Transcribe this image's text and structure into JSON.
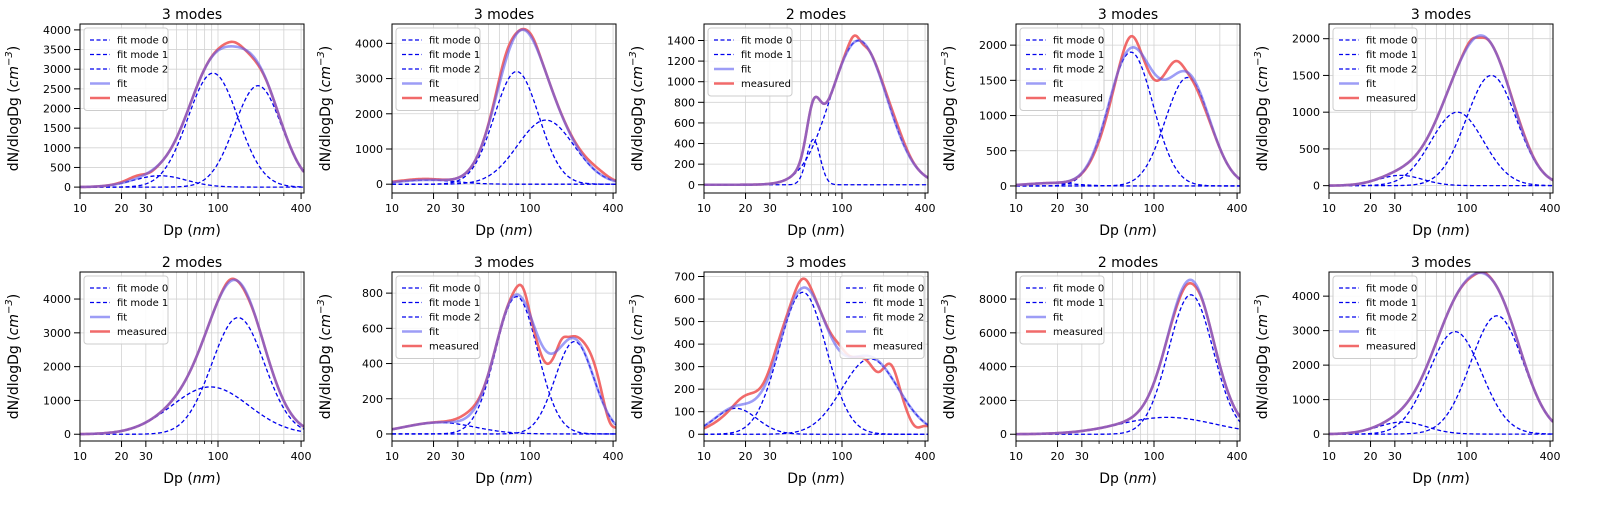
{
  "figure": {
    "xlabel": "Dp (nm)",
    "ylabel": "dN/dlogDg (cm^-3)"
  },
  "legend_labels": {
    "mode0": "fit mode 0",
    "mode1": "fit mode 1",
    "mode2": "fit mode 2",
    "fit": "fit",
    "measured": "measured"
  },
  "colors": {
    "modes": "#0000ee",
    "fit": "#5b5bf0",
    "measured": "#f05a5a",
    "grid": "#d3d3d3"
  },
  "chart_data": [
    {
      "type": "line",
      "title": "3 modes",
      "xscale": "log",
      "xlim": [
        10,
        420
      ],
      "xticks": [
        10,
        20,
        30,
        100,
        400
      ],
      "ylim": [
        -150,
        4150
      ],
      "yticks": [
        0,
        500,
        1000,
        1500,
        2000,
        2500,
        3000,
        3500,
        4000
      ],
      "legend": "upper-left",
      "modes": [
        {
          "amp": 290,
          "mu": 38,
          "sigma": 1.55
        },
        {
          "amp": 2900,
          "mu": 92,
          "sigma": 1.52
        },
        {
          "amp": 2580,
          "mu": 195,
          "sigma": 1.48
        }
      ],
      "measured_ripple": [
        [
          26,
          80,
          4
        ],
        [
          31,
          -45,
          3.5
        ],
        [
          128,
          120,
          18
        ],
        [
          180,
          -60,
          24
        ]
      ]
    },
    {
      "type": "line",
      "title": "3 modes",
      "xscale": "log",
      "xlim": [
        10,
        420
      ],
      "xticks": [
        10,
        20,
        30,
        100,
        400
      ],
      "ylim": [
        -250,
        4550
      ],
      "yticks": [
        0,
        1000,
        2000,
        3000,
        4000
      ],
      "legend": "upper-left",
      "modes": [
        {
          "amp": 120,
          "mu": 18,
          "sigma": 1.6
        },
        {
          "amp": 3200,
          "mu": 80,
          "sigma": 1.45
        },
        {
          "amp": 1820,
          "mu": 130,
          "sigma": 1.6
        }
      ],
      "measured_ripple": [
        [
          16,
          30,
          5
        ],
        [
          65,
          180,
          8
        ],
        [
          104,
          70,
          9
        ],
        [
          300,
          120,
          60
        ]
      ]
    },
    {
      "type": "line",
      "title": "2 modes",
      "xscale": "log",
      "xlim": [
        10,
        420
      ],
      "xticks": [
        10,
        20,
        30,
        100,
        400
      ],
      "ylim": [
        -80,
        1560
      ],
      "yticks": [
        0,
        200,
        400,
        600,
        800,
        1000,
        1200,
        1400
      ],
      "legend": "upper-left",
      "modes": [
        {
          "amp": 440,
          "mu": 62,
          "sigma": 1.12
        },
        {
          "amp": 1400,
          "mu": 132,
          "sigma": 1.6
        }
      ],
      "measured_ripple": [
        [
          122,
          70,
          10
        ],
        [
          140,
          -30,
          10
        ],
        [
          250,
          40,
          40
        ]
      ]
    },
    {
      "type": "line",
      "title": "3 modes",
      "xscale": "log",
      "xlim": [
        10,
        420
      ],
      "xticks": [
        10,
        20,
        30,
        100,
        400
      ],
      "ylim": [
        -100,
        2300
      ],
      "yticks": [
        0,
        500,
        1000,
        1500,
        2000
      ],
      "legend": "upper-left",
      "modes": [
        {
          "amp": 40,
          "mu": 18,
          "sigma": 1.5
        },
        {
          "amp": 1900,
          "mu": 68,
          "sigma": 1.45
        },
        {
          "amp": 1540,
          "mu": 175,
          "sigma": 1.45
        }
      ],
      "measured_ripple": [
        [
          46,
          -70,
          8
        ],
        [
          68,
          170,
          8
        ],
        [
          98,
          -110,
          12
        ],
        [
          140,
          200,
          18
        ],
        [
          210,
          -60,
          35
        ]
      ]
    },
    {
      "type": "line",
      "title": "3 modes",
      "xscale": "log",
      "xlim": [
        10,
        420
      ],
      "xticks": [
        10,
        20,
        30,
        100,
        400
      ],
      "ylim": [
        -100,
        2200
      ],
      "yticks": [
        0,
        500,
        1000,
        1500,
        2000
      ],
      "legend": "upper-left",
      "modes": [
        {
          "amp": 140,
          "mu": 33,
          "sigma": 1.45
        },
        {
          "amp": 1000,
          "mu": 85,
          "sigma": 1.55
        },
        {
          "amp": 1500,
          "mu": 150,
          "sigma": 1.52
        }
      ],
      "measured_ripple": [
        [
          108,
          40,
          10
        ],
        [
          122,
          -40,
          10
        ],
        [
          250,
          20,
          40
        ]
      ]
    },
    {
      "type": "line",
      "title": "2 modes",
      "xscale": "log",
      "xlim": [
        10,
        420
      ],
      "xticks": [
        10,
        20,
        30,
        100,
        400
      ],
      "ylim": [
        -200,
        4800
      ],
      "yticks": [
        0,
        1000,
        2000,
        3000,
        4000
      ],
      "legend": "upper-left",
      "modes": [
        {
          "amp": 1400,
          "mu": 88,
          "sigma": 1.9
        },
        {
          "amp": 3450,
          "mu": 140,
          "sigma": 1.55
        }
      ],
      "measured_ripple": [
        [
          120,
          60,
          10
        ],
        [
          160,
          -50,
          15
        ]
      ]
    },
    {
      "type": "line",
      "title": "3 modes",
      "xscale": "log",
      "xlim": [
        10,
        420
      ],
      "xticks": [
        10,
        20,
        30,
        100,
        400
      ],
      "ylim": [
        -40,
        920
      ],
      "yticks": [
        0,
        200,
        400,
        600,
        800
      ],
      "legend": "upper-left",
      "modes": [
        {
          "amp": 65,
          "mu": 22,
          "sigma": 1.8
        },
        {
          "amp": 780,
          "mu": 80,
          "sigma": 1.42
        },
        {
          "amp": 525,
          "mu": 210,
          "sigma": 1.38
        }
      ],
      "measured_ripple": [
        [
          35,
          25,
          6
        ],
        [
          88,
          70,
          8
        ],
        [
          128,
          -70,
          16
        ],
        [
          170,
          40,
          12
        ],
        [
          290,
          90,
          40
        ],
        [
          380,
          -40,
          30
        ]
      ]
    },
    {
      "type": "line",
      "title": "3 modes",
      "xscale": "log",
      "xlim": [
        10,
        420
      ],
      "xticks": [
        10,
        20,
        30,
        100,
        400
      ],
      "ylim": [
        -30,
        720
      ],
      "yticks": [
        0,
        100,
        200,
        300,
        400,
        500,
        600,
        700
      ],
      "legend": "upper-right",
      "modes": [
        {
          "amp": 115,
          "mu": 17,
          "sigma": 1.42
        },
        {
          "amp": 630,
          "mu": 52,
          "sigma": 1.48
        },
        {
          "amp": 335,
          "mu": 160,
          "sigma": 1.6
        }
      ],
      "measured_ripple": [
        [
          14,
          -30,
          3
        ],
        [
          20,
          40,
          4
        ],
        [
          33,
          30,
          5
        ],
        [
          52,
          40,
          6
        ],
        [
          95,
          25,
          10
        ],
        [
          180,
          -60,
          20
        ],
        [
          230,
          60,
          25
        ],
        [
          330,
          -60,
          40
        ]
      ]
    },
    {
      "type": "line",
      "title": "2 modes",
      "xscale": "log",
      "xlim": [
        10,
        420
      ],
      "xticks": [
        10,
        20,
        30,
        100,
        400
      ],
      "ylim": [
        -400,
        9600
      ],
      "yticks": [
        0,
        2000,
        4000,
        6000,
        8000
      ],
      "legend": "upper-left",
      "modes": [
        {
          "amp": 1000,
          "mu": 125,
          "sigma": 2.2
        },
        {
          "amp": 8250,
          "mu": 185,
          "sigma": 1.45
        }
      ],
      "measured_ripple": [
        [
          150,
          -150,
          15
        ],
        [
          190,
          -200,
          20
        ]
      ]
    },
    {
      "type": "line",
      "title": "3 modes",
      "xscale": "log",
      "xlim": [
        10,
        420
      ],
      "xticks": [
        10,
        20,
        30,
        100,
        400
      ],
      "ylim": [
        -200,
        4700
      ],
      "yticks": [
        0,
        1000,
        2000,
        3000,
        4000
      ],
      "legend": "upper-left",
      "modes": [
        {
          "amp": 350,
          "mu": 34,
          "sigma": 1.5
        },
        {
          "amp": 2970,
          "mu": 82,
          "sigma": 1.55
        },
        {
          "amp": 3430,
          "mu": 165,
          "sigma": 1.55
        }
      ],
      "measured_ripple": [
        [
          110,
          -40,
          12
        ],
        [
          130,
          40,
          12
        ]
      ]
    }
  ]
}
